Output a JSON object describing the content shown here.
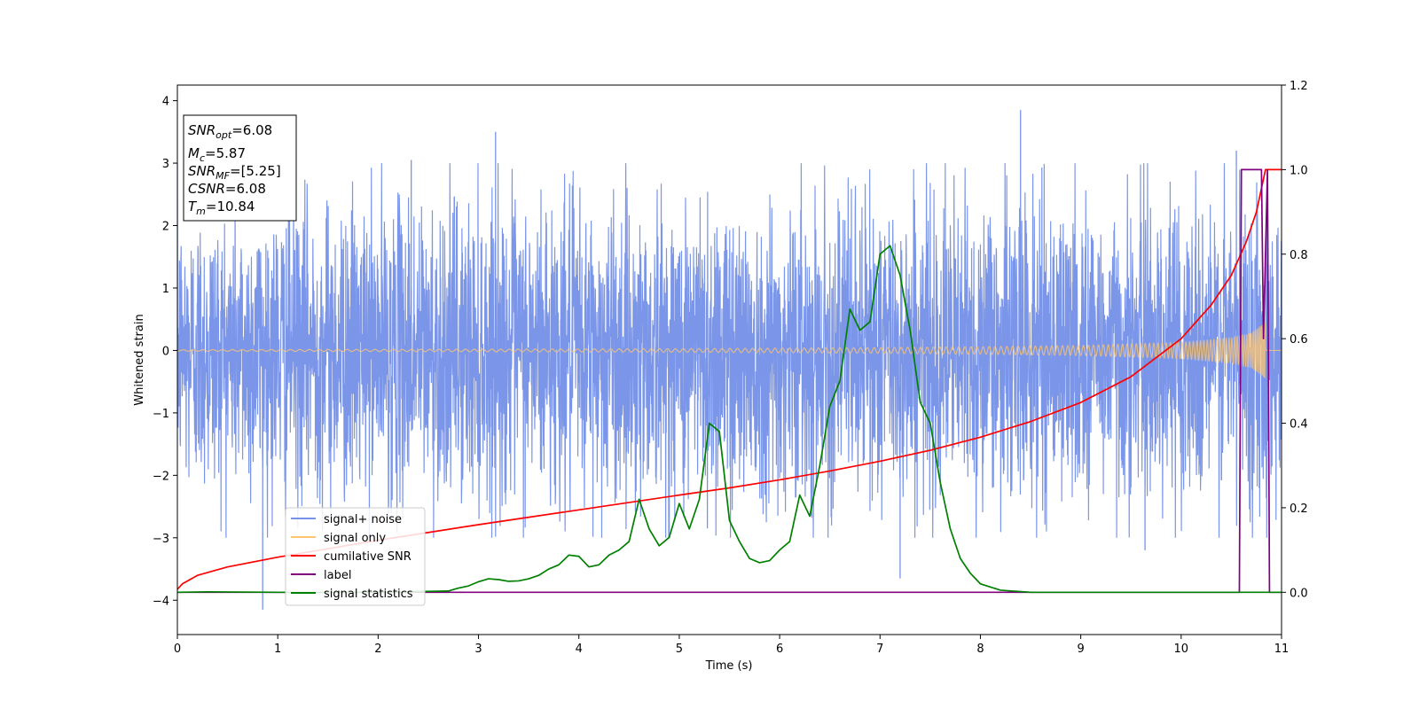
{
  "chart_data": {
    "type": "line",
    "xlabel": "Time (s)",
    "ylabel": "Whitened strain",
    "xlim": [
      0,
      11
    ],
    "ylim": [
      -4.55,
      4.25
    ],
    "y2lim": [
      -0.1,
      1.2
    ],
    "x_ticks": [
      "0",
      "1",
      "2",
      "3",
      "4",
      "5",
      "6",
      "7",
      "8",
      "9",
      "10",
      "11"
    ],
    "y_ticks": [
      "4",
      "3",
      "2",
      "1",
      "0",
      "−1",
      "−2",
      "−3",
      "−4"
    ],
    "y2_ticks": [
      "1.2",
      "1.0",
      "0.8",
      "0.6",
      "0.4",
      "0.2",
      "0.0"
    ],
    "grid": false,
    "legend_position": "lower-left",
    "annotation": {
      "lines": [
        {
          "base": "SNR",
          "sub": "opt",
          "rest": "=6.08"
        },
        {
          "base": "M",
          "sub": "c",
          "rest": "=5.87"
        },
        {
          "base": "SNR",
          "sub": "MF",
          "rest": "=[5.25]"
        },
        {
          "base": "CSNR",
          "sub": "",
          "rest": "=6.08"
        },
        {
          "base": "T",
          "sub": "m",
          "rest": "=10.84"
        }
      ]
    },
    "series": [
      {
        "name": "signal+ noise",
        "color": "#7793e8",
        "axis": "left",
        "kind": "noise",
        "amplitude_envelope": [
          [
            0,
            1.15
          ],
          [
            0.3,
            1.18
          ],
          [
            0.86,
            1.2
          ],
          [
            2.3,
            1.22
          ],
          [
            3.17,
            1.25
          ],
          [
            5.0,
            1.22
          ],
          [
            5.2,
            1.3
          ],
          [
            6.0,
            1.2
          ],
          [
            7.2,
            1.22
          ],
          [
            8.4,
            1.25
          ],
          [
            9.6,
            1.2
          ],
          [
            10.8,
            1.3
          ],
          [
            11,
            1.2
          ]
        ],
        "peaks": [
          [
            0.85,
            -4.15
          ],
          [
            2.33,
            3.05
          ],
          [
            3.17,
            3.5
          ],
          [
            5.28,
            -2.85
          ],
          [
            7.2,
            -3.65
          ],
          [
            8.4,
            3.85
          ],
          [
            9.64,
            -3.2
          ],
          [
            10.55,
            3.2
          ]
        ]
      },
      {
        "name": "signal only",
        "color": "#ffc66e",
        "axis": "left",
        "kind": "chirp",
        "envelope": [
          [
            0,
            0.012
          ],
          [
            3,
            0.02
          ],
          [
            5,
            0.028
          ],
          [
            7,
            0.045
          ],
          [
            8,
            0.06
          ],
          [
            9,
            0.08
          ],
          [
            10,
            0.13
          ],
          [
            10.5,
            0.2
          ],
          [
            10.7,
            0.28
          ],
          [
            10.84,
            0.45
          ],
          [
            10.85,
            0.0
          ],
          [
            11,
            0.0
          ]
        ]
      },
      {
        "name": "cumilative SNR",
        "color": "#ff0000",
        "axis": "right",
        "x": [
          0,
          0.05,
          0.2,
          0.5,
          1,
          1.5,
          2,
          3,
          4,
          5,
          5.5,
          6,
          6.5,
          7,
          7.5,
          8,
          8.5,
          9,
          9.5,
          10,
          10.3,
          10.5,
          10.65,
          10.75,
          10.84,
          11
        ],
        "values": [
          0.007,
          0.02,
          0.04,
          0.06,
          0.083,
          0.103,
          0.123,
          0.16,
          0.195,
          0.23,
          0.247,
          0.266,
          0.287,
          0.31,
          0.336,
          0.367,
          0.404,
          0.449,
          0.51,
          0.6,
          0.68,
          0.75,
          0.83,
          0.9,
          1.0,
          1.0
        ]
      },
      {
        "name": "label",
        "color": "#800080",
        "axis": "right",
        "x": [
          0,
          10.58,
          10.6,
          10.8,
          10.82,
          10.86,
          10.88,
          11
        ],
        "values": [
          0,
          0,
          1.0,
          1.0,
          0.6,
          1.0,
          0,
          0
        ]
      },
      {
        "name": "signal statistics",
        "color": "#008000",
        "axis": "right",
        "x": [
          0,
          0.3,
          1,
          2,
          2.7,
          2.8,
          2.9,
          3.0,
          3.1,
          3.2,
          3.3,
          3.4,
          3.5,
          3.6,
          3.7,
          3.8,
          3.9,
          4.0,
          4.1,
          4.2,
          4.3,
          4.4,
          4.5,
          4.6,
          4.7,
          4.8,
          4.9,
          5.0,
          5.1,
          5.2,
          5.3,
          5.4,
          5.5,
          5.6,
          5.7,
          5.8,
          5.9,
          6.0,
          6.1,
          6.2,
          6.3,
          6.4,
          6.5,
          6.6,
          6.7,
          6.8,
          6.9,
          7.0,
          7.1,
          7.2,
          7.3,
          7.4,
          7.5,
          7.6,
          7.7,
          7.8,
          7.9,
          8.0,
          8.2,
          8.5,
          9,
          10,
          10.5,
          11
        ],
        "values": [
          0,
          0.001,
          0,
          0,
          0.003,
          0.01,
          0.015,
          0.025,
          0.032,
          0.03,
          0.026,
          0.027,
          0.032,
          0.04,
          0.055,
          0.065,
          0.088,
          0.085,
          0.06,
          0.065,
          0.088,
          0.1,
          0.12,
          0.22,
          0.15,
          0.11,
          0.13,
          0.21,
          0.15,
          0.22,
          0.4,
          0.38,
          0.17,
          0.12,
          0.08,
          0.07,
          0.075,
          0.1,
          0.12,
          0.23,
          0.18,
          0.3,
          0.44,
          0.5,
          0.67,
          0.62,
          0.64,
          0.8,
          0.82,
          0.75,
          0.62,
          0.45,
          0.4,
          0.26,
          0.15,
          0.08,
          0.045,
          0.02,
          0.005,
          0,
          0,
          0,
          0,
          0
        ]
      }
    ]
  }
}
